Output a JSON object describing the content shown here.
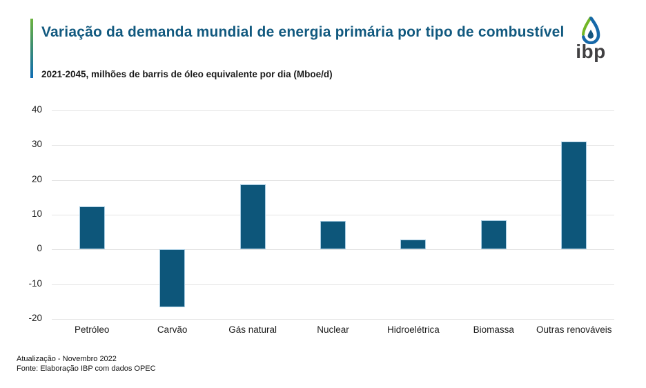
{
  "header": {
    "title": "Variação da demanda mundial de energia primária por tipo de combustível",
    "subtitle": "2021-2045, milhões de barris de óleo equivalente por dia (Mboe/d)",
    "logo_text": "ibp"
  },
  "chart_data": {
    "type": "bar",
    "title": "Variação da demanda mundial de energia primária por tipo de combustível",
    "subtitle": "2021-2045, milhões de barris de óleo equivalente por dia (Mboe/d)",
    "categories": [
      "Petróleo",
      "Carvão",
      "Gás natural",
      "Nuclear",
      "Hidroelétrica",
      "Biomassa",
      "Outras renováveis"
    ],
    "values": [
      12.4,
      -16.7,
      18.8,
      8.2,
      2.9,
      8.5,
      31.0
    ],
    "xlabel": "",
    "ylabel": "",
    "ylim": [
      -20,
      40
    ],
    "ytick_step": 10,
    "yticks": [
      40,
      30,
      20,
      10,
      0,
      -10,
      -20
    ],
    "grid": true,
    "legend": false,
    "bar_color": "#0d567a",
    "bar_border_color": "#a9cde3",
    "gridline_color": "#e3e3e3"
  },
  "footer": {
    "line1": "Atualização - Novembro 2022",
    "line2": "Fonte: Elaboração IBP com dados OPEC"
  },
  "colors": {
    "title": "#11597f",
    "accent_green": "#6cb33f",
    "accent_blue": "#0e6cb4",
    "logo_green": "#72b626",
    "logo_blue": "#1668a8",
    "logo_text": "#414042"
  }
}
